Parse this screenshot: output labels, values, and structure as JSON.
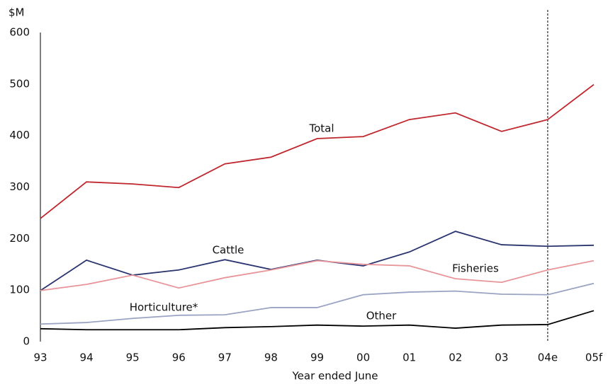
{
  "chart_data": {
    "type": "line",
    "y_label": "$M",
    "x_label": "Year ended June",
    "categories": [
      "93",
      "94",
      "95",
      "96",
      "97",
      "98",
      "99",
      "00",
      "01",
      "02",
      "03",
      "04e",
      "05f"
    ],
    "series": [
      {
        "name": "Total",
        "color": "#c0262d",
        "values": [
          239,
          310,
          306,
          299,
          345,
          358,
          394,
          398,
          431,
          444,
          408,
          431,
          499
        ]
      },
      {
        "name": "Cattle",
        "color": "#2a3570",
        "values": [
          99,
          158,
          129,
          139,
          159,
          140,
          158,
          147,
          174,
          214,
          188,
          185,
          187
        ]
      },
      {
        "name": "Fisheries",
        "color": "#e8959a",
        "values": [
          99,
          111,
          129,
          104,
          124,
          139,
          157,
          150,
          147,
          122,
          115,
          139,
          157
        ]
      },
      {
        "name": "Horticulture*",
        "color": "#9aa3c2",
        "values": [
          34,
          37,
          45,
          51,
          52,
          66,
          66,
          91,
          96,
          98,
          92,
          91,
          113
        ]
      },
      {
        "name": "Other",
        "color": "#000000",
        "values": [
          25,
          23,
          23,
          23,
          27,
          29,
          32,
          30,
          32,
          26,
          32,
          33,
          60
        ]
      }
    ],
    "ylim": [
      0,
      600
    ],
    "yticks": [
      0,
      100,
      200,
      300,
      400,
      500,
      600
    ],
    "divider": "04e"
  }
}
